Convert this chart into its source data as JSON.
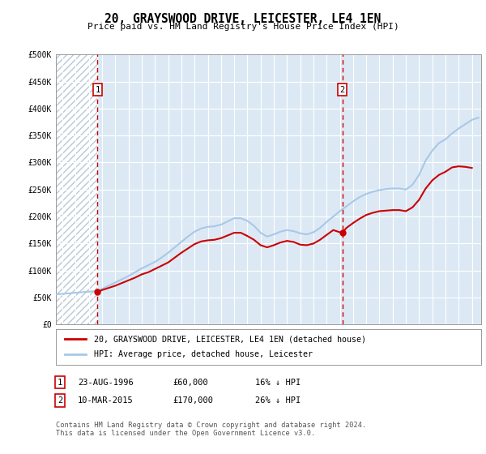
{
  "title": "20, GRAYSWOOD DRIVE, LEICESTER, LE4 1EN",
  "subtitle": "Price paid vs. HM Land Registry's House Price Index (HPI)",
  "legend_line1": "20, GRAYSWOOD DRIVE, LEICESTER, LE4 1EN (detached house)",
  "legend_line2": "HPI: Average price, detached house, Leicester",
  "annotation1_label": "1",
  "annotation1_date": "23-AUG-1996",
  "annotation1_price": "£60,000",
  "annotation1_hpi": "16% ↓ HPI",
  "annotation2_label": "2",
  "annotation2_date": "10-MAR-2015",
  "annotation2_price": "£170,000",
  "annotation2_hpi": "26% ↓ HPI",
  "footer": "Contains HM Land Registry data © Crown copyright and database right 2024.\nThis data is licensed under the Open Government Licence v3.0.",
  "hpi_color": "#a8c8e8",
  "price_color": "#cc0000",
  "annotation_color": "#cc0000",
  "bg_color": "#dce9f5",
  "hatch_color": "#b8c8d8",
  "grid_color": "#ffffff",
  "ylim": [
    0,
    500000
  ],
  "yticks": [
    0,
    50000,
    100000,
    150000,
    200000,
    250000,
    300000,
    350000,
    400000,
    450000,
    500000
  ],
  "xlim_start": 1993.5,
  "xlim_end": 2025.7,
  "xticks": [
    1994,
    1995,
    1996,
    1997,
    1998,
    1999,
    2000,
    2001,
    2002,
    2003,
    2004,
    2005,
    2006,
    2007,
    2008,
    2009,
    2010,
    2011,
    2012,
    2013,
    2014,
    2015,
    2016,
    2017,
    2018,
    2019,
    2020,
    2021,
    2022,
    2023,
    2024,
    2025
  ],
  "sale1_x": 1996.65,
  "sale1_y": 60000,
  "sale2_x": 2015.19,
  "sale2_y": 170000,
  "hpi_data_x": [
    1993.5,
    1994,
    1994.5,
    1995,
    1995.5,
    1996,
    1996.5,
    1997,
    1997.5,
    1998,
    1998.5,
    1999,
    1999.5,
    2000,
    2000.5,
    2001,
    2001.5,
    2002,
    2002.5,
    2003,
    2003.5,
    2004,
    2004.5,
    2005,
    2005.5,
    2006,
    2006.5,
    2007,
    2007.5,
    2008,
    2008.5,
    2009,
    2009.5,
    2010,
    2010.5,
    2011,
    2011.5,
    2012,
    2012.5,
    2013,
    2013.5,
    2014,
    2014.5,
    2015,
    2015.5,
    2016,
    2016.5,
    2017,
    2017.5,
    2018,
    2018.5,
    2019,
    2019.5,
    2020,
    2020.5,
    2021,
    2021.5,
    2022,
    2022.5,
    2023,
    2023.5,
    2024,
    2024.5,
    2025,
    2025.5
  ],
  "hpi_data_y": [
    56000,
    57000,
    58000,
    59000,
    60000,
    61000,
    62000,
    66000,
    72000,
    78000,
    84000,
    90000,
    97000,
    104000,
    110000,
    116000,
    124000,
    133000,
    143000,
    153000,
    163000,
    172000,
    178000,
    181000,
    182000,
    185000,
    191000,
    197000,
    197000,
    192000,
    183000,
    170000,
    163000,
    167000,
    172000,
    175000,
    173000,
    169000,
    167000,
    171000,
    179000,
    190000,
    200000,
    210000,
    219000,
    228000,
    236000,
    242000,
    246000,
    249000,
    251000,
    252000,
    252000,
    250000,
    259000,
    277000,
    304000,
    322000,
    336000,
    343000,
    354000,
    363000,
    371000,
    379000,
    383000
  ],
  "price_data_x": [
    1996.65,
    1997,
    1997.5,
    1998,
    1998.5,
    1999,
    1999.5,
    2000,
    2000.5,
    2001,
    2001.5,
    2002,
    2002.5,
    2003,
    2003.5,
    2004,
    2004.5,
    2005,
    2005.5,
    2006,
    2006.5,
    2007,
    2007.5,
    2008,
    2008.5,
    2009,
    2009.5,
    2010,
    2010.5,
    2011,
    2011.5,
    2012,
    2012.5,
    2013,
    2013.5,
    2014,
    2014.5,
    2015,
    2015.19,
    2015.5,
    2016,
    2016.5,
    2017,
    2017.5,
    2018,
    2018.5,
    2019,
    2019.5,
    2020,
    2020.5,
    2021,
    2021.5,
    2022,
    2022.5,
    2023,
    2023.5,
    2024,
    2024.5,
    2025
  ],
  "price_data_y": [
    60000,
    64000,
    68000,
    72000,
    77000,
    82000,
    87000,
    93000,
    97000,
    103000,
    109000,
    115000,
    124000,
    133000,
    141000,
    149000,
    154000,
    156000,
    157000,
    160000,
    165000,
    170000,
    170000,
    164000,
    157000,
    147000,
    143000,
    147000,
    152000,
    155000,
    153000,
    148000,
    147000,
    150000,
    157000,
    166000,
    175000,
    171000,
    170000,
    179000,
    188000,
    196000,
    203000,
    207000,
    210000,
    211000,
    212000,
    212000,
    210000,
    217000,
    231000,
    252000,
    267000,
    277000,
    283000,
    291000,
    293000,
    292000,
    290000
  ]
}
